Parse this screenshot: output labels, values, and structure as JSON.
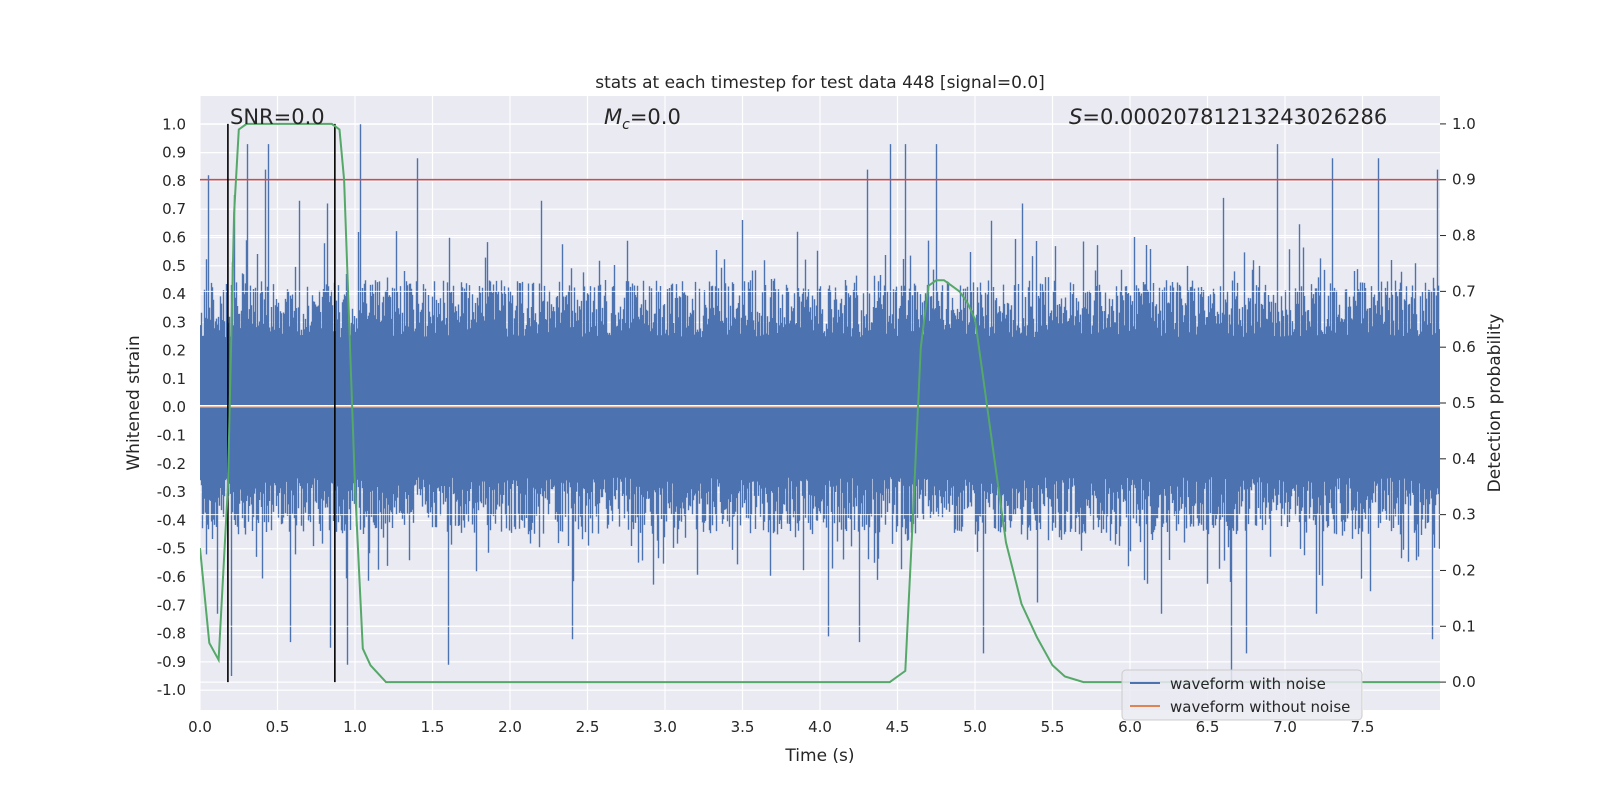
{
  "chart_data": {
    "type": "line",
    "title": "stats at each timestep for test data 448 [signal=0.0]",
    "xlabel": "Time (s)",
    "ylabel": "Whitened strain",
    "y2label": "Detection probability",
    "xlim": [
      0.0,
      8.0
    ],
    "ylim": [
      -1.07,
      1.1
    ],
    "y2lim": [
      -0.05,
      1.05
    ],
    "xticks": [
      "0.0",
      "0.5",
      "1.0",
      "1.5",
      "2.0",
      "2.5",
      "3.0",
      "3.5",
      "4.0",
      "4.5",
      "5.0",
      "5.5",
      "6.0",
      "6.5",
      "7.0",
      "7.5"
    ],
    "yticks": [
      "1.0",
      "0.9",
      "0.8",
      "0.7",
      "0.6",
      "0.5",
      "0.4",
      "0.3",
      "0.2",
      "0.1",
      "0.0",
      "-0.1",
      "-0.2",
      "-0.3",
      "-0.4",
      "-0.5",
      "-0.6",
      "-0.7",
      "-0.8",
      "-0.9",
      "-1.0"
    ],
    "y2ticks": [
      "1.0",
      "0.9",
      "0.8",
      "0.7",
      "0.6",
      "0.5",
      "0.4",
      "0.3",
      "0.2",
      "0.1",
      "0.0"
    ],
    "annotations": {
      "snr": "SNR=0.0",
      "mc_symbol": "M",
      "mc_sub": "c",
      "mc_value": "=0.0",
      "s_symbol": "S",
      "s_value": "=0.00020781213243026286"
    },
    "threshold": {
      "value": 0.9,
      "axis": "right",
      "color": "#c44e52"
    },
    "vlines": [
      0.18,
      0.87
    ],
    "legend": {
      "placement": "lower-right",
      "entries": [
        {
          "label": "waveform with noise",
          "color": "#4c72b0"
        },
        {
          "label": "waveform without noise",
          "color": "#dd8452"
        }
      ]
    },
    "series": [
      {
        "name": "waveform with noise",
        "axis": "left",
        "color": "#4c72b0",
        "envelope_note": "dense noise, roughly uniform amplitude",
        "typical_range": [
          -0.45,
          0.45
        ],
        "peaks_up": [
          [
            0.05,
            0.82
          ],
          [
            0.22,
            0.75
          ],
          [
            0.3,
            0.93
          ],
          [
            0.42,
            0.84
          ],
          [
            0.44,
            0.93
          ],
          [
            0.64,
            0.73
          ],
          [
            0.82,
            0.72
          ],
          [
            1.03,
            1.0
          ],
          [
            1.4,
            0.88
          ],
          [
            2.2,
            0.73
          ],
          [
            4.3,
            0.84
          ],
          [
            4.45,
            0.93
          ],
          [
            4.55,
            0.93
          ],
          [
            4.75,
            0.93
          ],
          [
            5.3,
            0.72
          ],
          [
            6.6,
            0.74
          ],
          [
            6.95,
            0.93
          ],
          [
            7.3,
            0.88
          ],
          [
            7.6,
            0.88
          ],
          [
            7.98,
            0.84
          ]
        ],
        "peaks_down": [
          [
            0.11,
            -0.73
          ],
          [
            0.2,
            -0.95
          ],
          [
            0.58,
            -0.83
          ],
          [
            0.84,
            -0.85
          ],
          [
            0.95,
            -0.91
          ],
          [
            1.6,
            -0.91
          ],
          [
            2.4,
            -0.82
          ],
          [
            4.05,
            -0.81
          ],
          [
            4.25,
            -0.83
          ],
          [
            5.05,
            -0.87
          ],
          [
            5.4,
            -0.69
          ],
          [
            6.2,
            -0.73
          ],
          [
            6.65,
            -1.0
          ],
          [
            6.75,
            -0.87
          ],
          [
            7.2,
            -0.73
          ],
          [
            7.55,
            -0.65
          ],
          [
            7.95,
            -0.82
          ]
        ]
      },
      {
        "name": "waveform without noise",
        "axis": "left",
        "color": "#dd8452",
        "x": [
          0.0,
          8.0
        ],
        "y": [
          0.0,
          0.0
        ]
      },
      {
        "name": "Detection probability",
        "axis": "right",
        "color": "#55a868",
        "x": [
          0.0,
          0.06,
          0.12,
          0.18,
          0.22,
          0.25,
          0.3,
          0.5,
          0.7,
          0.85,
          0.9,
          0.93,
          1.0,
          1.05,
          1.1,
          1.2,
          1.5,
          2.0,
          3.0,
          4.0,
          4.45,
          4.5,
          4.55,
          4.6,
          4.65,
          4.7,
          4.75,
          4.8,
          4.85,
          4.9,
          4.95,
          5.0,
          5.05,
          5.1,
          5.2,
          5.3,
          5.4,
          5.5,
          5.58,
          5.7,
          6.0,
          7.0,
          8.0
        ],
        "y": [
          0.24,
          0.07,
          0.04,
          0.35,
          0.84,
          0.99,
          1.0,
          1.0,
          1.0,
          1.0,
          0.99,
          0.9,
          0.35,
          0.06,
          0.03,
          0.0,
          0.0,
          0.0,
          0.0,
          0.0,
          0.0,
          0.01,
          0.02,
          0.3,
          0.6,
          0.71,
          0.72,
          0.72,
          0.71,
          0.7,
          0.68,
          0.65,
          0.55,
          0.45,
          0.25,
          0.14,
          0.08,
          0.03,
          0.01,
          0.0,
          0.0,
          0.0,
          0.0
        ]
      }
    ]
  }
}
